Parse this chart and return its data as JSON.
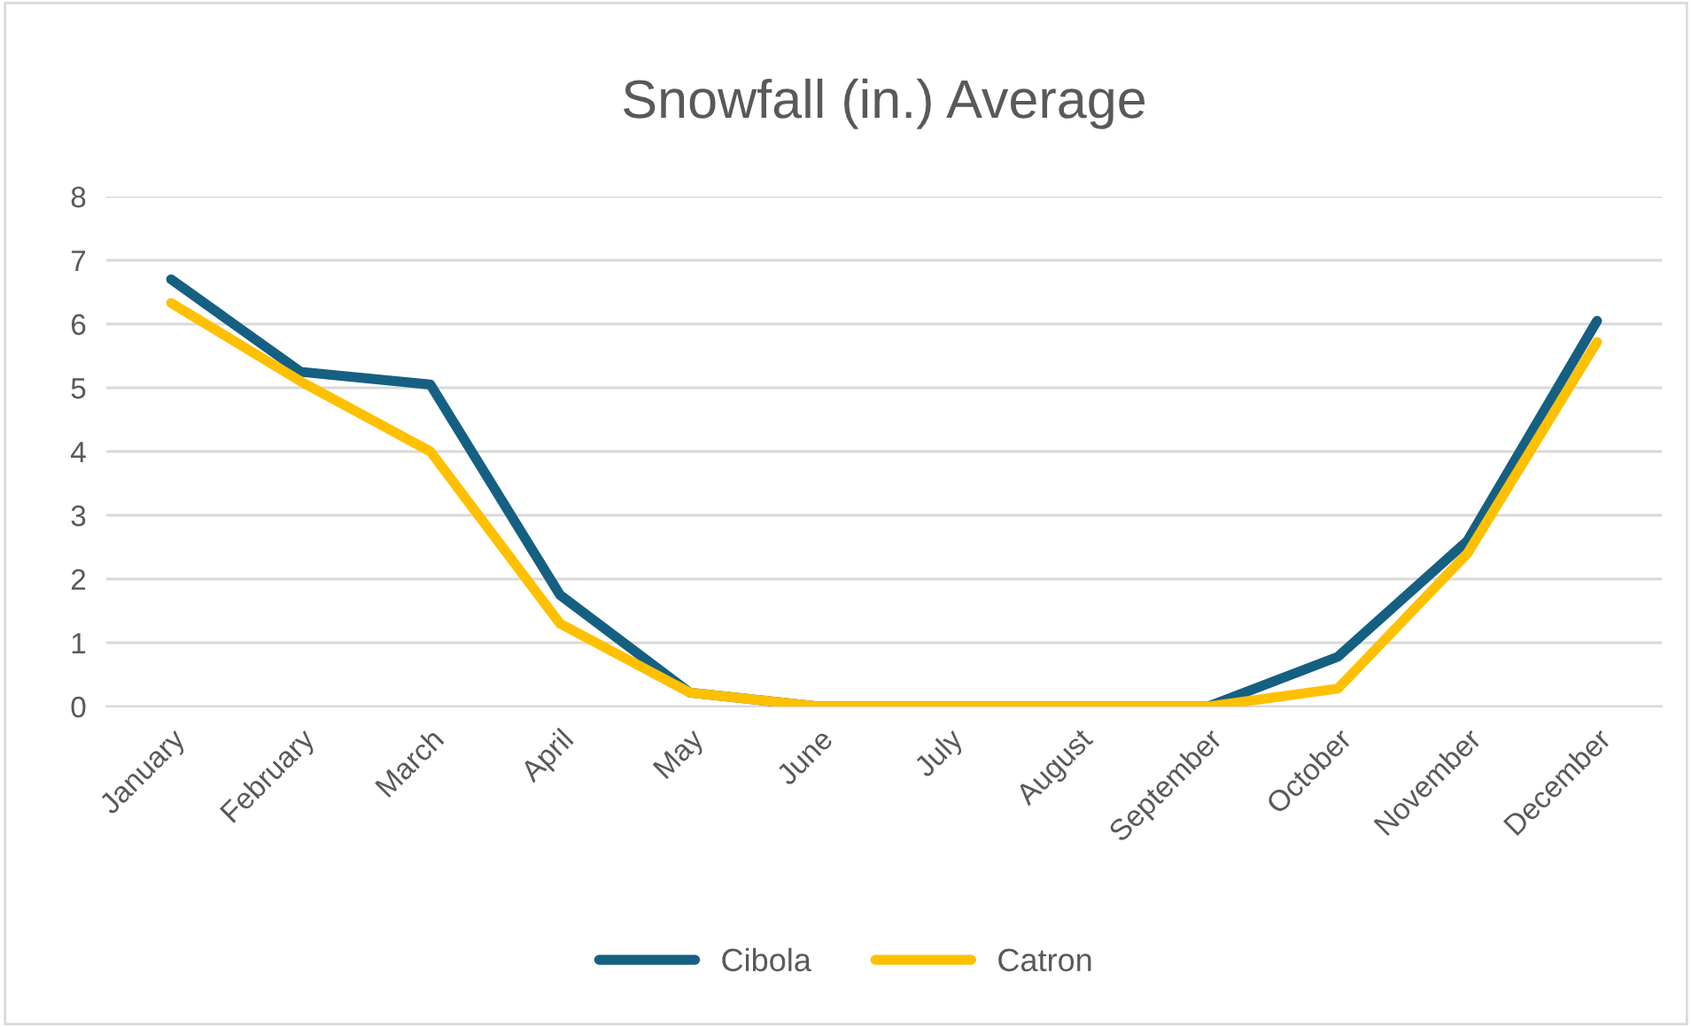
{
  "chart_data": {
    "type": "line",
    "title": "Snowfall (in.) Average",
    "categories": [
      "January",
      "February",
      "March",
      "April",
      "May",
      "June",
      "July",
      "August",
      "September",
      "October",
      "November",
      "December"
    ],
    "series": [
      {
        "name": "Cibola",
        "color": "#156082",
        "values": [
          6.7,
          5.25,
          5.05,
          1.75,
          0.22,
          0,
          0,
          0,
          0,
          0.78,
          2.6,
          6.05
        ]
      },
      {
        "name": "Catron",
        "color": "#ffc000",
        "values": [
          6.33,
          5.1,
          4.0,
          1.3,
          0.22,
          0,
          0,
          0,
          0,
          0.28,
          2.4,
          5.72
        ]
      }
    ],
    "ylim": [
      0,
      8
    ],
    "yticks": [
      0,
      1,
      2,
      3,
      4,
      5,
      6,
      7,
      8
    ],
    "grid": "y",
    "legend": "bottom",
    "marker": "none",
    "line_style": "solid"
  }
}
